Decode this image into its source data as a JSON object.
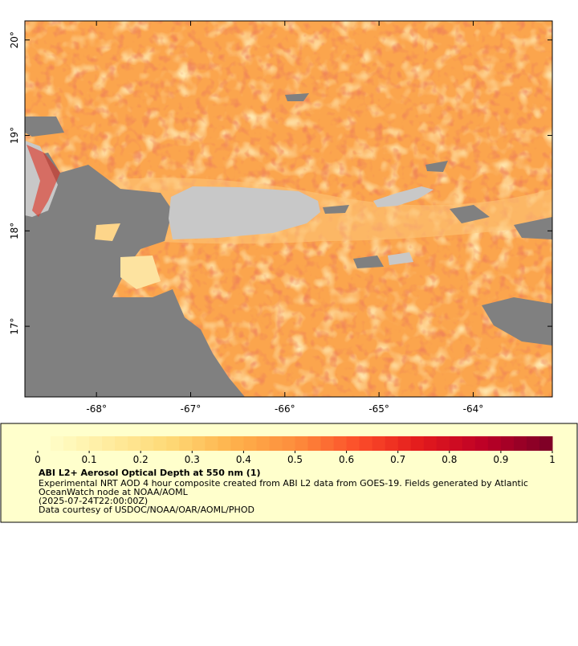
{
  "map": {
    "xlim": [
      -68.76,
      -63.16
    ],
    "ylim": [
      16.26,
      20.2
    ],
    "xticks": [
      {
        "value": -68,
        "label": "-68°"
      },
      {
        "value": -67,
        "label": "-67°"
      },
      {
        "value": -66,
        "label": "-66°"
      },
      {
        "value": -65,
        "label": "-65°"
      },
      {
        "value": -64,
        "label": "-64°"
      }
    ],
    "yticks": [
      {
        "value": 17,
        "label": "17°"
      },
      {
        "value": 18,
        "label": "18°"
      },
      {
        "value": 19,
        "label": "19°"
      },
      {
        "value": 20,
        "label": "20°"
      }
    ]
  },
  "colorbar": {
    "lim": [
      0,
      1
    ],
    "ticks": [
      0,
      0.1,
      0.2,
      0.3,
      0.4,
      0.5,
      0.6,
      0.7,
      0.8,
      0.9,
      1
    ],
    "levels": 40,
    "colors": [
      "#ffffcc",
      "#ffeda0",
      "#fed976",
      "#feb24c",
      "#fd8d3c",
      "#fc4e2a",
      "#e31a1c",
      "#bd0026",
      "#800026"
    ]
  },
  "legend": {
    "title": "ABI L2+ Aerosol Optical Depth at 550 nm (1)",
    "description": [
      "Experimental NRT AOD 4 hour composite created from ABI L2 data from GOES-19. Fields generated by Atlantic",
      "OceanWatch node at NOAA/AOML"
    ],
    "time": "(2025-07-24T22:00:00Z)",
    "credit": "Data courtesy of USDOC/NOAA/OAR/AOML/PHOD"
  }
}
